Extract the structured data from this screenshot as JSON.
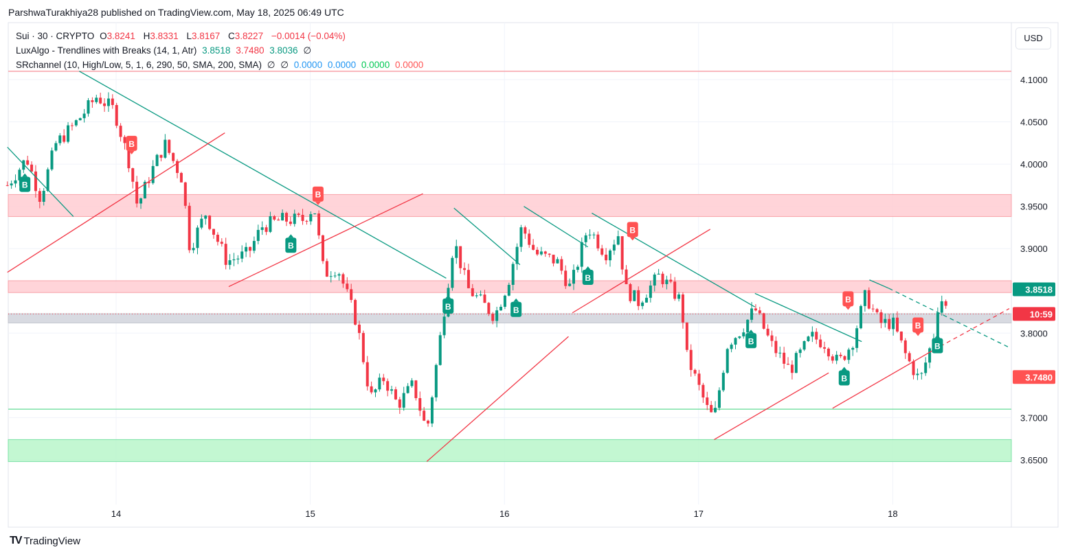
{
  "attribution": "ParshwaTurakhiya28 published on TradingView.com, May 18, 2025 06:49 UTC",
  "legend": {
    "symbol": "Sui · 30 · CRYPTO",
    "o_label": "O",
    "o": "3.8241",
    "h_label": "H",
    "h": "3.8331",
    "l_label": "L",
    "l": "3.8167",
    "c_label": "C",
    "c": "3.8227",
    "change": "−0.0014 (−0.04%)",
    "ind1_name": "LuxAlgo - Trendlines with Breaks (14, 1, Atr)",
    "ind1_v1": "3.8518",
    "ind1_v2": "3.7480",
    "ind1_v3": "3.8036",
    "ind1_na": "∅",
    "ind2_name": "SRchannel (10, High/Low, 5, 1, 6, 290, 50, SMA, 200, SMA)",
    "ind2_na1": "∅",
    "ind2_na2": "∅",
    "ind2_v1": "0.0000",
    "ind2_v2": "0.0000",
    "ind2_v3": "0.0000",
    "ind2_v4": "0.0000"
  },
  "currency": "USD",
  "brand": "TradingView",
  "colors": {
    "up": "#089981",
    "down": "#F23645",
    "res_zone": "#FFCDD2",
    "sup_zone": "#B9F6CA",
    "mid_zone": "#D1D4DC"
  },
  "chart_data": {
    "type": "candlestick",
    "title": "Sui · 30 · CRYPTO",
    "xlabel": "",
    "ylabel": "USD",
    "ylim": [
      3.6,
      4.13
    ],
    "xlim": [
      13.44,
      18.62
    ],
    "x_ticks": [
      {
        "v": 14,
        "label": "14"
      },
      {
        "v": 15,
        "label": "15"
      },
      {
        "v": 16,
        "label": "16"
      },
      {
        "v": 17,
        "label": "17"
      },
      {
        "v": 18,
        "label": "18"
      }
    ],
    "y_ticks": [
      "4.1000",
      "4.0500",
      "4.0000",
      "3.9500",
      "3.9000",
      "3.8000",
      "3.7000",
      "3.6500"
    ],
    "interval_days": 0.0208333,
    "price_path": [
      [
        13.44,
        3.975
      ],
      [
        13.54,
        4.007
      ],
      [
        13.61,
        3.96
      ],
      [
        13.69,
        4.024
      ],
      [
        13.79,
        4.048
      ],
      [
        13.9,
        4.08
      ],
      [
        13.99,
        4.064
      ],
      [
        14.07,
        4.0
      ],
      [
        14.11,
        3.95
      ],
      [
        14.18,
        3.99
      ],
      [
        14.25,
        4.024
      ],
      [
        14.34,
        3.983
      ],
      [
        14.38,
        3.9
      ],
      [
        14.46,
        3.942
      ],
      [
        14.57,
        3.885
      ],
      [
        14.68,
        3.894
      ],
      [
        14.75,
        3.926
      ],
      [
        14.85,
        3.934
      ],
      [
        14.96,
        3.934
      ],
      [
        15.02,
        3.95
      ],
      [
        15.07,
        3.87
      ],
      [
        15.14,
        3.878
      ],
      [
        15.24,
        3.812
      ],
      [
        15.31,
        3.723
      ],
      [
        15.38,
        3.747
      ],
      [
        15.45,
        3.715
      ],
      [
        15.53,
        3.739
      ],
      [
        15.6,
        3.683
      ],
      [
        15.67,
        3.796
      ],
      [
        15.74,
        3.91
      ],
      [
        15.81,
        3.853
      ],
      [
        15.88,
        3.837
      ],
      [
        15.95,
        3.82
      ],
      [
        16.02,
        3.861
      ],
      [
        16.09,
        3.926
      ],
      [
        16.16,
        3.894
      ],
      [
        16.27,
        3.885
      ],
      [
        16.34,
        3.853
      ],
      [
        16.43,
        3.926
      ],
      [
        16.52,
        3.894
      ],
      [
        16.59,
        3.918
      ],
      [
        16.62,
        3.853
      ],
      [
        16.69,
        3.837
      ],
      [
        16.8,
        3.869
      ],
      [
        16.91,
        3.837
      ],
      [
        16.94,
        3.772
      ],
      [
        17.05,
        3.707
      ],
      [
        17.08,
        3.699
      ],
      [
        17.15,
        3.788
      ],
      [
        17.22,
        3.804
      ],
      [
        17.29,
        3.829
      ],
      [
        17.37,
        3.788
      ],
      [
        17.47,
        3.756
      ],
      [
        17.58,
        3.796
      ],
      [
        17.65,
        3.788
      ],
      [
        17.72,
        3.764
      ],
      [
        17.79,
        3.788
      ],
      [
        17.86,
        3.845
      ],
      [
        17.93,
        3.812
      ],
      [
        18.0,
        3.812
      ],
      [
        18.07,
        3.772
      ],
      [
        18.14,
        3.743
      ],
      [
        18.21,
        3.796
      ],
      [
        18.24,
        3.845
      ],
      [
        18.29,
        3.8227
      ]
    ],
    "sr_zones": [
      {
        "kind": "resistance",
        "from": 3.938,
        "to": 3.964
      },
      {
        "kind": "resistance",
        "from": 3.848,
        "to": 3.862
      },
      {
        "kind": "current",
        "from": 3.812,
        "to": 3.823
      },
      {
        "kind": "support",
        "from": 3.648,
        "to": 3.674
      }
    ],
    "sr_lines": [
      {
        "kind": "resistance",
        "price": 4.11
      },
      {
        "kind": "support",
        "price": 3.71
      }
    ],
    "trendlines_down": [
      [
        [
          13.44,
          4.02
        ],
        [
          13.78,
          3.938
        ]
      ],
      [
        [
          13.81,
          4.11
        ],
        [
          15.7,
          3.865
        ]
      ],
      [
        [
          15.74,
          3.948
        ],
        [
          16.08,
          3.881
        ]
      ],
      [
        [
          16.1,
          3.95
        ],
        [
          16.43,
          3.902
        ]
      ],
      [
        [
          16.45,
          3.942
        ],
        [
          17.29,
          3.831
        ]
      ],
      [
        [
          17.29,
          3.847
        ],
        [
          17.84,
          3.79
        ]
      ],
      [
        [
          17.88,
          3.863
        ],
        [
          17.98,
          3.853
        ]
      ]
    ],
    "trendlines_up": [
      [
        [
          13.44,
          3.872
        ],
        [
          14.56,
          4.037
        ]
      ],
      [
        [
          14.58,
          3.855
        ],
        [
          15.58,
          3.965
        ]
      ],
      [
        [
          15.6,
          3.648
        ],
        [
          16.33,
          3.796
        ]
      ],
      [
        [
          16.35,
          3.824
        ],
        [
          17.06,
          3.923
        ]
      ],
      [
        [
          17.08,
          3.674
        ],
        [
          17.67,
          3.753
        ]
      ],
      [
        [
          17.69,
          3.711
        ],
        [
          18.21,
          3.78
        ]
      ]
    ],
    "projection_down": [
      [
        17.98,
        3.853
      ],
      [
        18.6,
        3.783
      ]
    ],
    "projection_up": [
      [
        18.21,
        3.78
      ],
      [
        18.6,
        3.829
      ]
    ],
    "break_labels": [
      {
        "type": "bull",
        "label": "B",
        "x": 13.53,
        "y": 3.985
      },
      {
        "type": "bull",
        "label": "B",
        "x": 14.9,
        "y": 3.913
      },
      {
        "type": "bull",
        "label": "B",
        "x": 15.71,
        "y": 3.841
      },
      {
        "type": "bull",
        "label": "B",
        "x": 16.06,
        "y": 3.837
      },
      {
        "type": "bull",
        "label": "B",
        "x": 16.43,
        "y": 3.875
      },
      {
        "type": "bull",
        "label": "B",
        "x": 17.27,
        "y": 3.8
      },
      {
        "type": "bull",
        "label": "B",
        "x": 17.75,
        "y": 3.756
      },
      {
        "type": "bull",
        "label": "B",
        "x": 18.23,
        "y": 3.794
      },
      {
        "type": "bear",
        "label": "B",
        "x": 14.08,
        "y": 4.014
      },
      {
        "type": "bear",
        "label": "B",
        "x": 15.04,
        "y": 3.954
      },
      {
        "type": "bear",
        "label": "B",
        "x": 16.66,
        "y": 3.912
      },
      {
        "type": "bear",
        "label": "B",
        "x": 17.77,
        "y": 3.83
      },
      {
        "type": "bear",
        "label": "B",
        "x": 18.13,
        "y": 3.799
      }
    ],
    "price_labels": [
      {
        "text": "3.8518",
        "price": 3.8518,
        "color": "#089981"
      },
      {
        "text": "10:59",
        "price": 3.8227,
        "color": "#F23645"
      },
      {
        "text": "3.7480",
        "price": 3.748,
        "color": "#FF5252"
      }
    ]
  }
}
